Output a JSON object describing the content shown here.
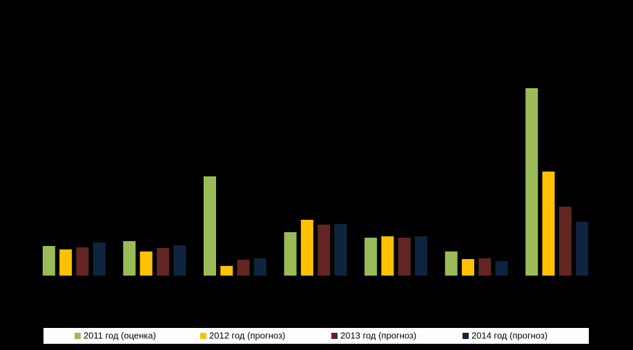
{
  "chart_data": {
    "type": "bar",
    "categories": [
      null,
      null,
      null,
      null,
      null,
      null,
      null
    ],
    "ylim": [
      0,
      300
    ],
    "legend": "bottom",
    "series": [
      {
        "name": "2011 год (оценка)",
        "color": "#9bbb59",
        "values": [
          43,
          50,
          144,
          63,
          55,
          35,
          272
        ]
      },
      {
        "name": "2012 год (прогноз)",
        "color": "#ffc000",
        "values": [
          38,
          35,
          14,
          81,
          57,
          24,
          151
        ]
      },
      {
        "name": "2013 год (прогноз)",
        "color": "#632523",
        "values": [
          41,
          40,
          23,
          74,
          55,
          25,
          100
        ]
      },
      {
        "name": "2014 год (прогноз)",
        "color": "#0f243e",
        "values": [
          48,
          44,
          25,
          75,
          57,
          21,
          78
        ]
      }
    ]
  }
}
